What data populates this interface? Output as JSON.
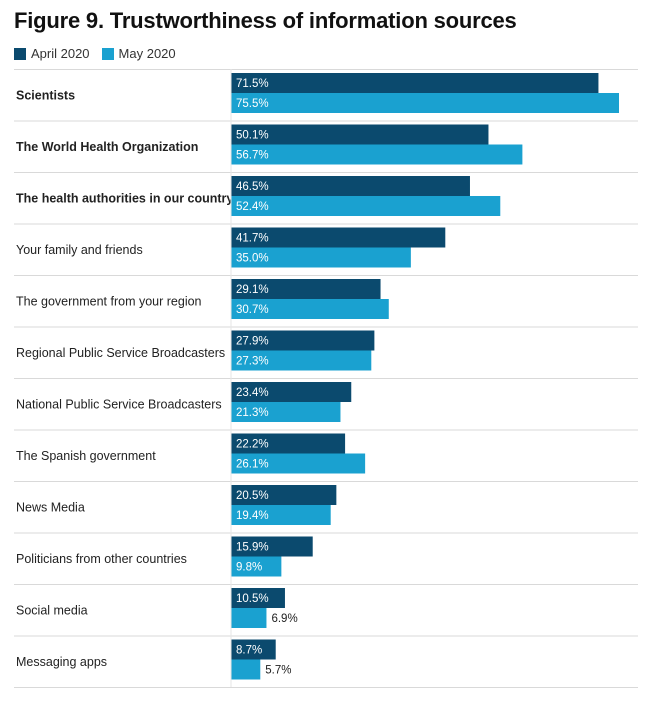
{
  "title": "Figure 9. Trustworthiness of information sources",
  "colors": {
    "april": "#0b4a6e",
    "may": "#1aa1d0",
    "divider": "#d9d9d9"
  },
  "chart_data": {
    "type": "bar",
    "orientation": "horizontal",
    "title": "Figure 9. Trustworthiness of information sources",
    "categories": [
      "Scientists",
      "The World Health Organization",
      "The health authorities in our country",
      "Your family and friends",
      "The government from your region",
      "Regional Public Service Broadcasters",
      "National Public Service Broadcasters",
      "The Spanish government",
      "News Media",
      "Politicians from other countries",
      "Social media",
      "Messaging apps"
    ],
    "bold_categories": [
      "Scientists",
      "The World Health Organization",
      "The health authorities in our country"
    ],
    "series": [
      {
        "name": "April 2020",
        "values": [
          71.5,
          50.1,
          46.5,
          41.7,
          29.1,
          27.9,
          23.4,
          22.2,
          20.5,
          15.9,
          10.5,
          8.7
        ]
      },
      {
        "name": "May 2020",
        "values": [
          75.5,
          56.7,
          52.4,
          35.0,
          30.7,
          27.3,
          21.3,
          26.1,
          19.4,
          9.8,
          6.9,
          5.7
        ]
      }
    ],
    "value_suffix": "%",
    "legend": "top-left",
    "grid": false,
    "xlim": [
      0,
      75.5
    ]
  }
}
